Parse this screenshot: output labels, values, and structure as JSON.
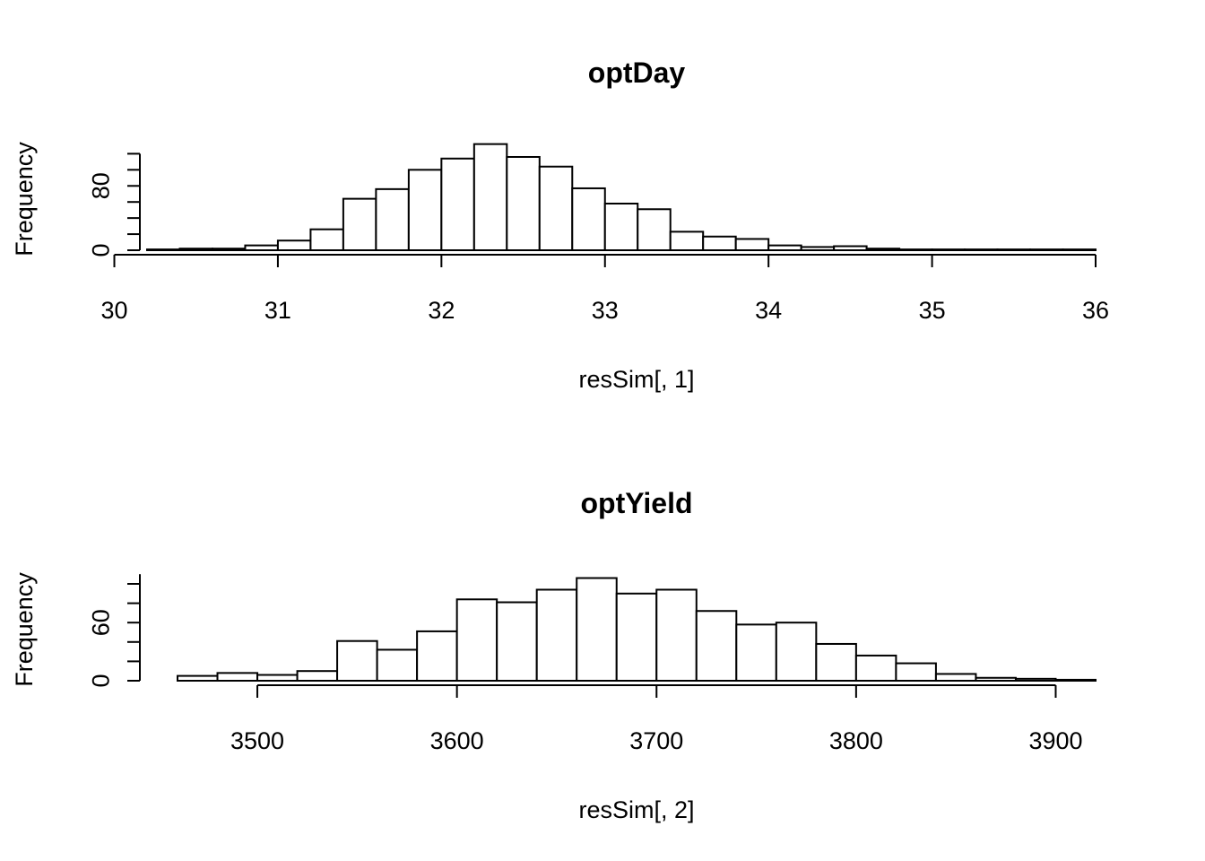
{
  "chart_data": [
    {
      "type": "bar",
      "title": "optDay",
      "xlabel": "resSim[, 1]",
      "ylabel": "Frequency",
      "xlim": [
        30,
        36
      ],
      "ylim": [
        0,
        120
      ],
      "x_ticks": [
        "30",
        "31",
        "32",
        "33",
        "34",
        "35",
        "36"
      ],
      "y_ticks": [
        "0",
        "80"
      ],
      "bin_start": 30.2,
      "bin_width": 0.2,
      "values": [
        1,
        2,
        2,
        6,
        12,
        26,
        64,
        76,
        100,
        114,
        132,
        116,
        104,
        77,
        58,
        51,
        23,
        17,
        14,
        6,
        4,
        5,
        2,
        1,
        1,
        1,
        1,
        1,
        1
      ]
    },
    {
      "type": "bar",
      "title": "optYield",
      "xlabel": "resSim[, 2]",
      "ylabel": "Frequency",
      "xlim": [
        3460,
        3920
      ],
      "ylim": [
        0,
        110
      ],
      "x_ticks": [
        "3500",
        "3600",
        "3700",
        "3800",
        "3900"
      ],
      "y_ticks": [
        "0",
        "60"
      ],
      "bin_start": 3460,
      "bin_width": 20,
      "values": [
        5,
        8,
        6,
        10,
        41,
        32,
        51,
        84,
        81,
        94,
        106,
        90,
        94,
        72,
        58,
        60,
        38,
        26,
        18,
        7,
        3,
        2,
        1
      ]
    }
  ]
}
